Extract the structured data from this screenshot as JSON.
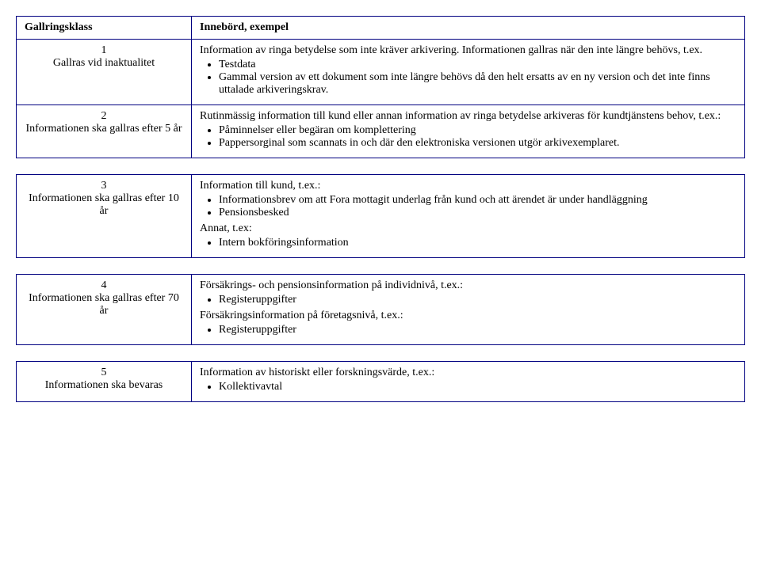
{
  "headers": {
    "left": "Gallringsklass",
    "right": "Innebörd, exempel"
  },
  "rows": [
    {
      "num": "1",
      "label": "Gallras vid inaktualitet",
      "intro": "Information av ringa betydelse som inte kräver arkivering. Informationen gallras när den inte längre behövs, t.ex.",
      "items": [
        "Testdata",
        "Gammal version av ett dokument som inte längre behövs då den helt ersatts av en ny version och det inte finns uttalade arkiveringskrav."
      ]
    },
    {
      "num": "2",
      "label": "Informationen ska gallras efter 5 år",
      "intro": "Rutinmässig information till kund eller annan information av ringa betydelse arkiveras för kundtjänstens behov, t.ex.:",
      "items": [
        "Påminnelser eller begäran om komplettering",
        "Pappersorginal som scannats in och där den elektroniska versionen utgör arkivexemplaret."
      ]
    },
    {
      "num": "3",
      "label": "Informationen ska gallras efter 10 år",
      "intro": "Information till kund, t.ex.:",
      "items": [
        "Informationsbrev om att Fora mottagit underlag från kund och att ärendet är under handläggning",
        "Pensionsbesked"
      ],
      "intro2": "Annat, t.ex:",
      "items2": [
        "Intern bokföringsinformation"
      ]
    },
    {
      "num": "4",
      "label": "Informationen ska gallras efter 70 år",
      "intro": "Försäkrings- och pensionsinformation på individnivå, t.ex.:",
      "items": [
        "Registeruppgifter"
      ],
      "intro2": "Försäkringsinformation på företagsnivå, t.ex.:",
      "items2": [
        "Registeruppgifter"
      ]
    },
    {
      "num": "5",
      "label": "Informationen ska bevaras",
      "intro": "Information av historiskt eller forskningsvärde, t.ex.:",
      "items": [
        "Kollektivavtal"
      ]
    }
  ]
}
